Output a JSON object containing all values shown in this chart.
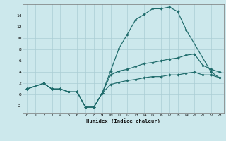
{
  "xlabel": "Humidex (Indice chaleur)",
  "bg_color": "#cce8ec",
  "grid_color": "#aacdd4",
  "line_color": "#1e6b6b",
  "xlim": [
    -0.5,
    23.5
  ],
  "ylim": [
    -3.2,
    16.0
  ],
  "xticks": [
    0,
    1,
    2,
    3,
    4,
    5,
    6,
    7,
    8,
    9,
    10,
    11,
    12,
    13,
    14,
    15,
    16,
    17,
    18,
    19,
    20,
    21,
    22,
    23
  ],
  "yticks": [
    -2,
    0,
    2,
    4,
    6,
    8,
    10,
    12,
    14
  ],
  "curve1_x": [
    0,
    2,
    3,
    4,
    5,
    6,
    7,
    8,
    9,
    10,
    11,
    12,
    13,
    14,
    15,
    16,
    17,
    18,
    19,
    22,
    23
  ],
  "curve1_y": [
    1,
    2,
    1,
    1,
    0.5,
    0.5,
    -2.2,
    -2.2,
    0.3,
    4.2,
    8.2,
    10.7,
    13.3,
    14.2,
    15.2,
    15.2,
    15.5,
    14.7,
    11.5,
    4.0,
    3.0
  ],
  "curve2_x": [
    0,
    2,
    3,
    4,
    5,
    6,
    7,
    8,
    9,
    10,
    11,
    12,
    13,
    14,
    15,
    16,
    17,
    18,
    19,
    20,
    21,
    22,
    23
  ],
  "curve2_y": [
    1,
    2,
    1,
    1,
    0.5,
    0.5,
    -2.2,
    -2.2,
    0.3,
    3.5,
    4.2,
    4.5,
    5.0,
    5.5,
    5.7,
    6.0,
    6.3,
    6.5,
    7.0,
    7.2,
    5.2,
    4.5,
    4.0
  ],
  "curve3_x": [
    0,
    2,
    3,
    4,
    5,
    6,
    7,
    8,
    9,
    10,
    11,
    12,
    13,
    14,
    15,
    16,
    17,
    18,
    19,
    20,
    21,
    22,
    23
  ],
  "curve3_y": [
    1,
    2,
    1,
    1,
    0.5,
    0.5,
    -2.2,
    -2.2,
    0.3,
    1.8,
    2.2,
    2.5,
    2.7,
    3.0,
    3.2,
    3.2,
    3.5,
    3.5,
    3.8,
    4.0,
    3.5,
    3.5,
    3.0
  ]
}
